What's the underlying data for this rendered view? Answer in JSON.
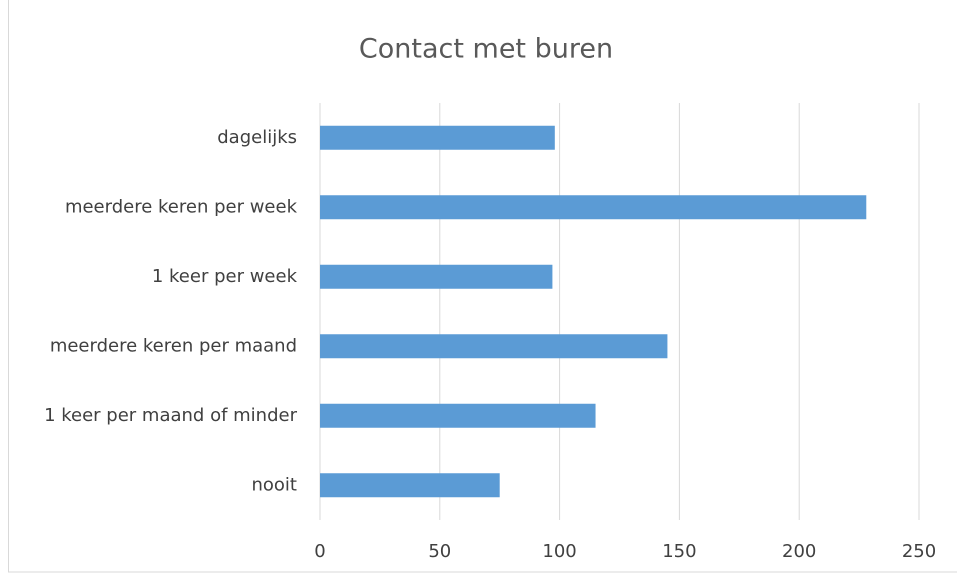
{
  "chart_data": {
    "type": "hbar",
    "title": "Contact met buren",
    "categories": [
      "dagelijks",
      "meerdere keren per week",
      "1 keer per week",
      "meerdere keren per maand",
      "1 keer per maand of minder",
      "nooit"
    ],
    "values": [
      98,
      228,
      97,
      145,
      115,
      75
    ],
    "color": "#5b9bd5",
    "xlim": [
      0,
      250
    ],
    "xticks": [
      0,
      50,
      100,
      150,
      200,
      250
    ],
    "grid": true
  }
}
